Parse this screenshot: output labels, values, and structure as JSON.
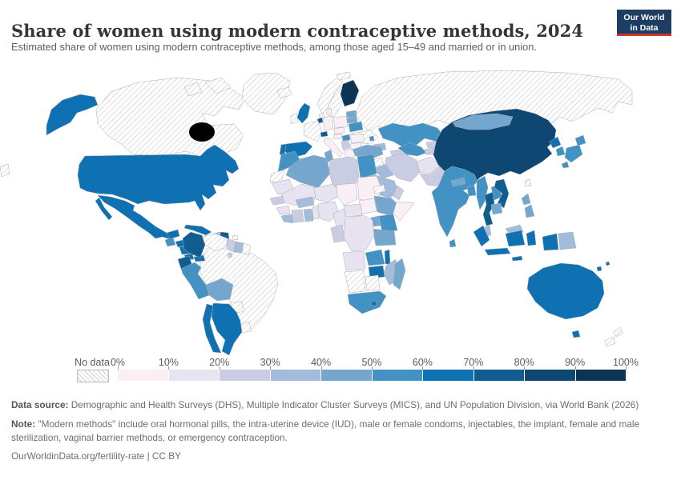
{
  "header": {
    "title": "Share of women using modern contraceptive methods, 2024",
    "subtitle": "Estimated share of women using modern contraceptive methods, among those aged 15–49 and married or in union.",
    "logo": {
      "line1": "Our World",
      "line2": "in Data",
      "bg_color": "#1d3d63",
      "accent_color": "#c4392f"
    }
  },
  "legend": {
    "no_data_label": "No data"
  },
  "footer": {
    "data_source_label": "Data source:",
    "data_source_text": " Demographic and Health Surveys (DHS), Multiple Indicator Cluster Surveys (MICS), and UN Population Division, via World Bank (2026)",
    "note_label": "Note:",
    "note_text": " \"Modern methods\" include oral hormonal pills, the intra-uterine device (IUD), male or female condoms, injectables, the implant, female and male sterilization, vaginal barrier methods, or emergency contraception.",
    "attribution": "OurWorldinData.org/fertility-rate | CC BY"
  },
  "chart_data": {
    "type": "choropleth_map",
    "title": "Share of women using modern contraceptive methods, 2024",
    "unit": "% of women aged 15–49, married or in union",
    "tick_labels": [
      "0%",
      "10%",
      "20%",
      "30%",
      "40%",
      "50%",
      "60%",
      "70%",
      "80%",
      "90%",
      "100%"
    ],
    "bands": [
      "0-10",
      "10-20",
      "20-30",
      "30-40",
      "40-50",
      "50-60",
      "60-70",
      "70-80",
      "80-90",
      "90-100"
    ],
    "band_colors": [
      "#faeff5",
      "#e7e3f0",
      "#cacce3",
      "#a2bcda",
      "#74a6ce",
      "#4292c3",
      "#0f70b2",
      "#115d90",
      "#0e4772",
      "#0d3553"
    ],
    "no_data_style": "gray-diagonal-hatch",
    "countries": [
      {
        "name": "United States",
        "band": "60-70"
      },
      {
        "name": "Canada",
        "band": "no-data"
      },
      {
        "name": "Greenland",
        "band": "no-data"
      },
      {
        "name": "Mexico",
        "band": "60-70"
      },
      {
        "name": "Guatemala",
        "band": "50-60"
      },
      {
        "name": "Honduras",
        "band": "60-70"
      },
      {
        "name": "Nicaragua",
        "band": "60-70"
      },
      {
        "name": "Costa Rica",
        "band": "60-70"
      },
      {
        "name": "Panama",
        "band": "60-70"
      },
      {
        "name": "Cuba",
        "band": "60-70"
      },
      {
        "name": "Jamaica",
        "band": "60-70"
      },
      {
        "name": "Haiti",
        "band": "30-40"
      },
      {
        "name": "Dominican Republic",
        "band": "70-80"
      },
      {
        "name": "Puerto Rico",
        "band": "no-data"
      },
      {
        "name": "Trinidad and Tobago",
        "band": "20-30"
      },
      {
        "name": "Colombia",
        "band": "70-80"
      },
      {
        "name": "Venezuela",
        "band": "no-data"
      },
      {
        "name": "Guyana",
        "band": "20-30"
      },
      {
        "name": "Suriname",
        "band": "30-40"
      },
      {
        "name": "French Guiana",
        "band": "no-data"
      },
      {
        "name": "Ecuador",
        "band": "70-80"
      },
      {
        "name": "Peru",
        "band": "50-60"
      },
      {
        "name": "Bolivia",
        "band": "40-50"
      },
      {
        "name": "Brazil",
        "band": "no-data"
      },
      {
        "name": "Paraguay",
        "band": "no-data"
      },
      {
        "name": "Uruguay",
        "band": "no-data"
      },
      {
        "name": "Argentina",
        "band": "60-70"
      },
      {
        "name": "Chile",
        "band": "60-70"
      },
      {
        "name": "Iceland",
        "band": "no-data"
      },
      {
        "name": "United Kingdom",
        "band": "60-70"
      },
      {
        "name": "Ireland",
        "band": "no-data"
      },
      {
        "name": "Norway",
        "band": "no-data"
      },
      {
        "name": "Sweden",
        "band": "no-data"
      },
      {
        "name": "Finland",
        "band": "90-100"
      },
      {
        "name": "Estonia",
        "band": "40-50"
      },
      {
        "name": "Latvia",
        "band": "40-50"
      },
      {
        "name": "Belarus",
        "band": "50-60"
      },
      {
        "name": "Ukraine",
        "band": "no-data"
      },
      {
        "name": "Moldova",
        "band": "50-60"
      },
      {
        "name": "Poland",
        "band": "0-10"
      },
      {
        "name": "Germany",
        "band": "0-10"
      },
      {
        "name": "Netherlands",
        "band": "0-10"
      },
      {
        "name": "Belgium",
        "band": "70-80"
      },
      {
        "name": "Denmark",
        "band": "0-10"
      },
      {
        "name": "France",
        "band": "no-data"
      },
      {
        "name": "Switzerland",
        "band": "70-80"
      },
      {
        "name": "Czechia",
        "band": "0-10"
      },
      {
        "name": "Austria",
        "band": "0-10"
      },
      {
        "name": "Hungary",
        "band": "50-60"
      },
      {
        "name": "Romania",
        "band": "0-10"
      },
      {
        "name": "Serbia",
        "band": "20-30"
      },
      {
        "name": "Bulgaria",
        "band": "0-10"
      },
      {
        "name": "Greece",
        "band": "0-10"
      },
      {
        "name": "Italy",
        "band": "0-10"
      },
      {
        "name": "Spain",
        "band": "60-70"
      },
      {
        "name": "Portugal",
        "band": "60-70"
      },
      {
        "name": "Russia",
        "band": "no-data"
      },
      {
        "name": "Kazakhstan",
        "band": "50-60"
      },
      {
        "name": "Uzbekistan",
        "band": "50-60"
      },
      {
        "name": "Turkmenistan",
        "band": "20-30"
      },
      {
        "name": "Kyrgyzstan",
        "band": "20-30"
      },
      {
        "name": "Tajikistan",
        "band": "20-30"
      },
      {
        "name": "Azerbaijan",
        "band": "30-40"
      },
      {
        "name": "Turkey",
        "band": "40-50"
      },
      {
        "name": "Syria",
        "band": "no-data"
      },
      {
        "name": "Iraq",
        "band": "30-40"
      },
      {
        "name": "Iran",
        "band": "20-30"
      },
      {
        "name": "Afghanistan",
        "band": "10-20"
      },
      {
        "name": "Pakistan",
        "band": "20-30"
      },
      {
        "name": "Jordan",
        "band": "30-40"
      },
      {
        "name": "Saudi Arabia",
        "band": "30-40"
      },
      {
        "name": "Yemen",
        "band": "10-20"
      },
      {
        "name": "Oman",
        "band": "20-30"
      },
      {
        "name": "Morocco",
        "band": "50-60"
      },
      {
        "name": "Western Sahara",
        "band": "no-data"
      },
      {
        "name": "Algeria",
        "band": "40-50"
      },
      {
        "name": "Tunisia",
        "band": "40-50"
      },
      {
        "name": "Libya",
        "band": "20-30"
      },
      {
        "name": "Egypt",
        "band": "50-60"
      },
      {
        "name": "Mauritania",
        "band": "10-20"
      },
      {
        "name": "Mali",
        "band": "10-20"
      },
      {
        "name": "Niger",
        "band": "10-20"
      },
      {
        "name": "Chad",
        "band": "0-10"
      },
      {
        "name": "Sudan",
        "band": "0-10"
      },
      {
        "name": "Eritrea",
        "band": "no-data"
      },
      {
        "name": "Ethiopia",
        "band": "40-50"
      },
      {
        "name": "Somalia",
        "band": "0-10"
      },
      {
        "name": "South Sudan",
        "band": "0-10"
      },
      {
        "name": "Kenya",
        "band": "50-60"
      },
      {
        "name": "Uganda",
        "band": "40-50"
      },
      {
        "name": "Tanzania",
        "band": "40-50"
      },
      {
        "name": "Senegal",
        "band": "20-30"
      },
      {
        "name": "Guinea",
        "band": "10-20"
      },
      {
        "name": "Liberia",
        "band": "30-40"
      },
      {
        "name": "Cote d'Ivoire",
        "band": "20-30"
      },
      {
        "name": "Burkina Faso",
        "band": "30-40"
      },
      {
        "name": "Ghana",
        "band": "30-40"
      },
      {
        "name": "Benin",
        "band": "10-20"
      },
      {
        "name": "Nigeria",
        "band": "10-20"
      },
      {
        "name": "Cameroon",
        "band": "10-20"
      },
      {
        "name": "Central African Republic",
        "band": "10-20"
      },
      {
        "name": "Congo",
        "band": "20-30"
      },
      {
        "name": "Democratic Republic of Congo",
        "band": "10-20"
      },
      {
        "name": "Angola",
        "band": "10-20"
      },
      {
        "name": "Zambia",
        "band": "50-60"
      },
      {
        "name": "Malawi",
        "band": "60-70"
      },
      {
        "name": "Mozambique",
        "band": "30-40"
      },
      {
        "name": "Zimbabwe",
        "band": "60-70"
      },
      {
        "name": "Namibia",
        "band": "no-data"
      },
      {
        "name": "Botswana",
        "band": "no-data"
      },
      {
        "name": "South Africa",
        "band": "50-60"
      },
      {
        "name": "Lesotho",
        "band": "60-70"
      },
      {
        "name": "Madagascar",
        "band": "40-50"
      },
      {
        "name": "India",
        "band": "50-60"
      },
      {
        "name": "Nepal",
        "band": "40-50"
      },
      {
        "name": "Bangladesh",
        "band": "50-60"
      },
      {
        "name": "Sri Lanka",
        "band": "50-60"
      },
      {
        "name": "Myanmar",
        "band": "50-60"
      },
      {
        "name": "Thailand",
        "band": "70-80"
      },
      {
        "name": "Laos",
        "band": "50-60"
      },
      {
        "name": "Vietnam",
        "band": "70-80"
      },
      {
        "name": "Cambodia",
        "band": "40-50"
      },
      {
        "name": "Malaysia",
        "band": "30-40"
      },
      {
        "name": "Indonesia",
        "band": "60-70"
      },
      {
        "name": "Papua New Guinea",
        "band": "30-40"
      },
      {
        "name": "Philippines",
        "band": "40-50"
      },
      {
        "name": "Taiwan",
        "band": "no-data"
      },
      {
        "name": "China",
        "band": "80-90"
      },
      {
        "name": "Mongolia",
        "band": "40-50"
      },
      {
        "name": "North Korea",
        "band": "60-70"
      },
      {
        "name": "South Korea",
        "band": "50-60"
      },
      {
        "name": "Japan",
        "band": "50-60"
      },
      {
        "name": "Australia",
        "band": "60-70"
      },
      {
        "name": "New Zealand",
        "band": "no-data"
      },
      {
        "name": "Fiji",
        "band": "60-70"
      }
    ]
  }
}
